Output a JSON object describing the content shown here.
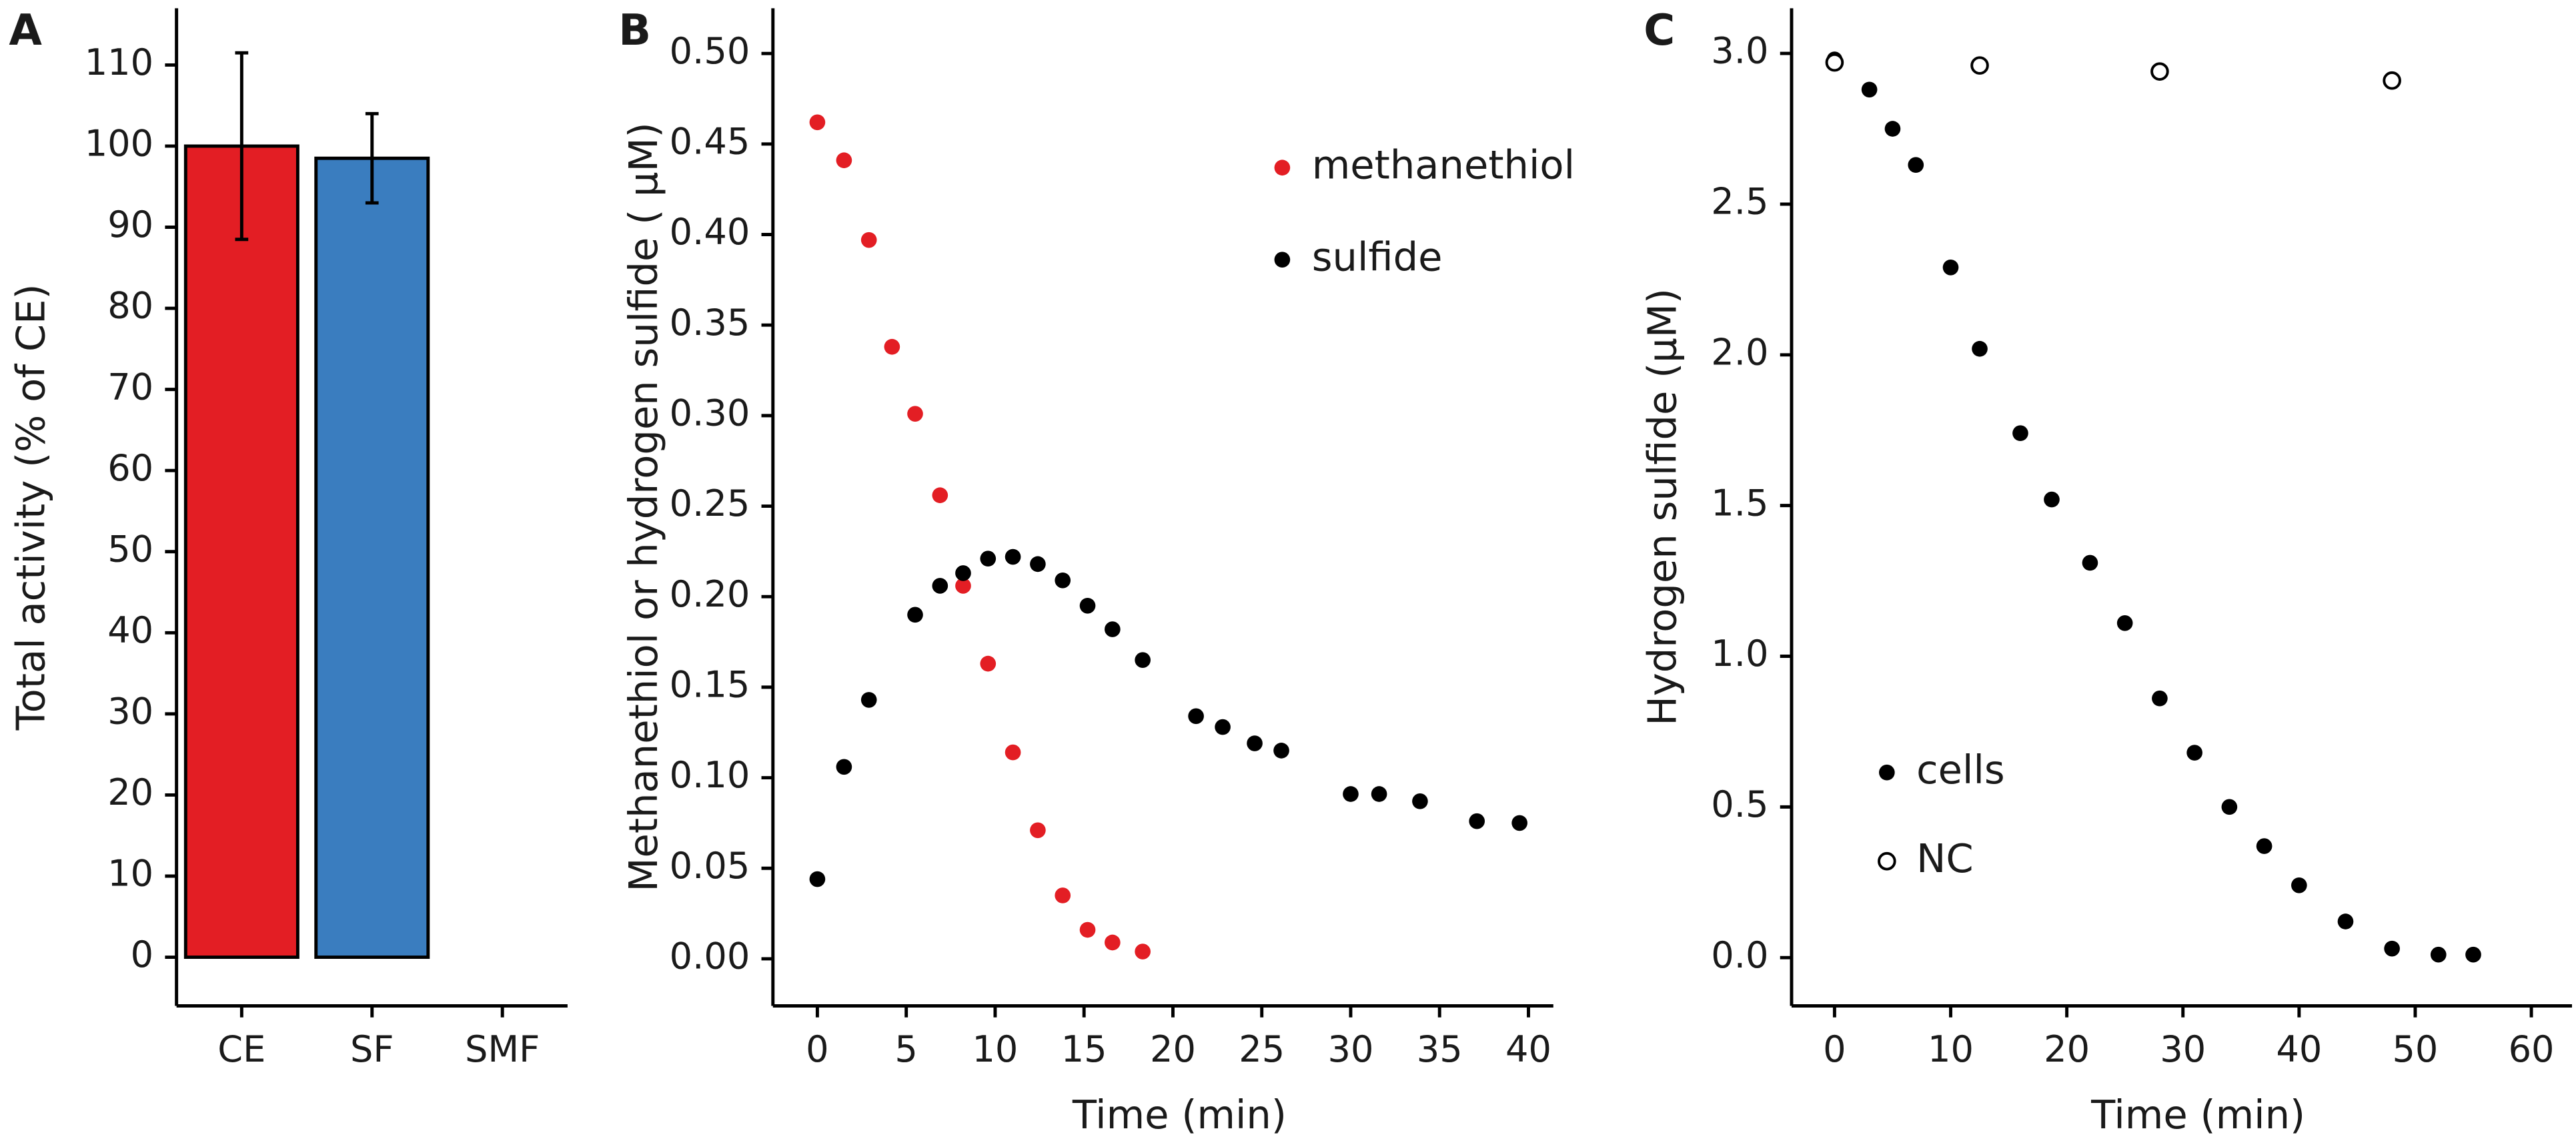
{
  "chart_data": [
    {
      "type": "bar",
      "panel_label": "A",
      "ylabel": "Total activity (% of CE)",
      "categories": [
        "CE",
        "SF",
        "SMF"
      ],
      "values": [
        100,
        98.5,
        0
      ],
      "errors": [
        11.5,
        5.5,
        0
      ],
      "colors": [
        "#e31e24",
        "#3a7dbf",
        "#3a7dbf"
      ],
      "ylim": [
        -6,
        117
      ],
      "yticks": [
        0,
        10,
        20,
        30,
        40,
        50,
        60,
        70,
        80,
        90,
        100,
        110
      ]
    },
    {
      "type": "scatter",
      "panel_label": "B",
      "xlabel": "Time (min)",
      "ylabel": "Methanethiol or hydrogen sulfide ( μM)",
      "xlim": [
        -2.5,
        41.4
      ],
      "xticks": [
        0,
        5,
        10,
        15,
        20,
        25,
        30,
        35,
        40
      ],
      "ylim": [
        -0.026,
        0.525
      ],
      "yticks": [
        {
          "value": 0,
          "label": "0.00"
        },
        0.05,
        {
          "value": 0.1,
          "label": "0.10"
        },
        0.15,
        {
          "value": 0.2,
          "label": "0.20"
        },
        0.25,
        {
          "value": 0.3,
          "label": "0.30"
        },
        0.35,
        {
          "value": 0.4,
          "label": "0.40"
        },
        0.45,
        {
          "value": 0.5,
          "label": "0.50"
        }
      ],
      "series": [
        {
          "name": "methanethiol",
          "color": "#e31e24",
          "marker": "filled",
          "x": [
            0,
            1.5,
            2.9,
            4.2,
            5.5,
            6.9,
            8.2,
            9.6,
            11.0,
            12.4,
            13.8,
            15.2,
            16.6,
            18.3
          ],
          "values": [
            0.462,
            0.441,
            0.397,
            0.338,
            0.301,
            0.256,
            0.206,
            0.163,
            0.114,
            0.071,
            0.035,
            0.016,
            0.009,
            0.004
          ]
        },
        {
          "name": "sulfide",
          "color": "#000000",
          "marker": "filled",
          "x": [
            0,
            1.5,
            2.9,
            5.5,
            6.9,
            8.2,
            9.6,
            11.0,
            12.4,
            13.8,
            15.2,
            16.6,
            18.3,
            21.3,
            22.8,
            24.6,
            26.1,
            30.0,
            31.6,
            33.9,
            37.1,
            39.5
          ],
          "values": [
            0.044,
            0.106,
            0.143,
            0.19,
            0.206,
            0.213,
            0.221,
            0.222,
            0.218,
            0.209,
            0.195,
            0.182,
            0.165,
            0.134,
            0.128,
            0.119,
            0.115,
            0.091,
            0.091,
            0.087,
            0.076,
            0.075
          ]
        }
      ]
    },
    {
      "type": "scatter",
      "panel_label": "C",
      "xlabel": "Time (min)",
      "ylabel": "Hydrogen sulfide (μM)",
      "xlim": [
        -3.7,
        63.5
      ],
      "xticks": [
        0,
        10,
        20,
        30,
        40,
        50,
        60
      ],
      "ylim": [
        -0.16,
        3.15
      ],
      "yticks": [
        {
          "value": 0,
          "label": "0.0"
        },
        0.5,
        {
          "value": 1,
          "label": "1.0"
        },
        1.5,
        {
          "value": 2,
          "label": "2.0"
        },
        2.5,
        {
          "value": 3,
          "label": "3.0"
        }
      ],
      "series": [
        {
          "name": "cells",
          "color": "#000000",
          "marker": "filled",
          "x": [
            0,
            3,
            5,
            7,
            10,
            12.5,
            16,
            18.7,
            22,
            25,
            28,
            31,
            34,
            37,
            40,
            44,
            48,
            52,
            55
          ],
          "values": [
            2.98,
            2.88,
            2.75,
            2.63,
            2.29,
            2.02,
            1.74,
            1.52,
            1.31,
            1.11,
            0.86,
            0.68,
            0.5,
            0.37,
            0.24,
            0.12,
            0.03,
            0.01,
            0.01
          ]
        },
        {
          "name": "NC",
          "color": "#000000",
          "marker": "open",
          "x": [
            0,
            12.5,
            28,
            48
          ],
          "values": [
            2.97,
            2.96,
            2.94,
            2.91
          ]
        }
      ]
    }
  ]
}
